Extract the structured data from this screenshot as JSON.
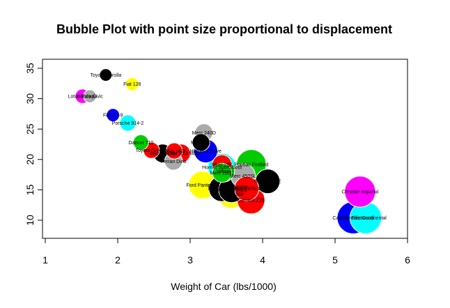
{
  "chart_data": {
    "type": "scatter",
    "title": "Bubble Plot with point size proportional to displacement",
    "xlabel": "Weight of Car (lbs/1000)",
    "ylabel": "",
    "xlim": [
      1,
      6
    ],
    "ylim": [
      7,
      37.5
    ],
    "x_ticks": [
      "1",
      "2",
      "3",
      "4",
      "5",
      "6"
    ],
    "y_ticks": [
      "10",
      "15",
      "20",
      "25",
      "30",
      "35"
    ],
    "grid": false,
    "legend": "none",
    "points": [
      {
        "label": "Chrysler Imperial",
        "x": 5.345,
        "y": 14.7,
        "disp": 440,
        "color": "#ff00ff"
      },
      {
        "label": "Lincoln Continental",
        "x": 5.424,
        "y": 10.4,
        "disp": 460,
        "color": "#00ffff"
      },
      {
        "label": "Cadillac Fleetwood",
        "x": 5.25,
        "y": 10.4,
        "disp": 472,
        "color": "#0000ff"
      },
      {
        "label": "Camaro Z28",
        "x": 3.84,
        "y": 13.3,
        "disp": 350,
        "color": "#ff0000"
      },
      {
        "label": "Hornet Sportabout",
        "x": 3.44,
        "y": 18.7,
        "disp": 360,
        "color": "#00ffff"
      },
      {
        "label": "Pontiac Firebird",
        "x": 3.845,
        "y": 19.2,
        "disp": 400,
        "color": "#00cc00"
      },
      {
        "label": "Ford Pantera L",
        "x": 3.17,
        "y": 15.8,
        "disp": 351,
        "color": "#ffff00"
      },
      {
        "label": "Duster 360",
        "x": 3.57,
        "y": 14.3,
        "disp": 360,
        "color": "#ffff00"
      },
      {
        "label": "Merc 450SE",
        "x": 4.07,
        "y": 16.4,
        "disp": 275.8,
        "color": "#000000"
      },
      {
        "label": "Merc 450SL",
        "x": 3.73,
        "y": 17.3,
        "disp": 275.8,
        "color": "#aaaaaa"
      },
      {
        "label": "Merc 450SLC",
        "x": 3.78,
        "y": 15.2,
        "disp": 275.8,
        "color": "#ff0000"
      },
      {
        "label": "AMC Javelin",
        "x": 3.435,
        "y": 15.2,
        "disp": 304,
        "color": "#000000"
      },
      {
        "label": "Dodge Challenger",
        "x": 3.52,
        "y": 15.5,
        "disp": 318,
        "color": "#000000"
      },
      {
        "label": "Maserati Bora",
        "x": 3.57,
        "y": 15.0,
        "disp": 301,
        "color": "#000000"
      },
      {
        "label": "Hornet 4 Drive",
        "x": 3.215,
        "y": 21.4,
        "disp": 258,
        "color": "#0000ff"
      },
      {
        "label": "Valiant",
        "x": 3.46,
        "y": 18.1,
        "disp": 225,
        "color": "#00cc00"
      },
      {
        "label": "Merc 230",
        "x": 3.15,
        "y": 22.8,
        "disp": 140.8,
        "color": "#000000"
      },
      {
        "label": "Merc 240D",
        "x": 3.19,
        "y": 24.4,
        "disp": 146.7,
        "color": "#aaaaaa"
      },
      {
        "label": "Merc 280",
        "x": 3.44,
        "y": 19.2,
        "disp": 167.6,
        "color": "#ff0000"
      },
      {
        "label": "Merc 280C",
        "x": 3.44,
        "y": 17.8,
        "disp": 167.6,
        "color": "#00cc00"
      },
      {
        "label": "Ferrari Dino",
        "x": 2.77,
        "y": 19.7,
        "disp": 145,
        "color": "#aaaaaa"
      },
      {
        "label": "Mazda RX4",
        "x": 2.62,
        "y": 21.0,
        "disp": 160,
        "color": "#000000"
      },
      {
        "label": "Mazda RX4 Wag",
        "x": 2.875,
        "y": 21.0,
        "disp": 160,
        "color": "#ff0000"
      },
      {
        "label": "Volvo 142E",
        "x": 2.78,
        "y": 21.4,
        "disp": 121,
        "color": "#ff0000"
      },
      {
        "label": "Toyota Corona",
        "x": 2.465,
        "y": 21.5,
        "disp": 120.1,
        "color": "#ff0000"
      },
      {
        "label": "Datsun 710",
        "x": 2.32,
        "y": 22.8,
        "disp": 108,
        "color": "#00cc00"
      },
      {
        "label": "Porsche 914-2",
        "x": 2.14,
        "y": 26.0,
        "disp": 120.3,
        "color": "#00ffff"
      },
      {
        "label": "Fiat X1-9",
        "x": 1.935,
        "y": 27.3,
        "disp": 79,
        "color": "#0000ff"
      },
      {
        "label": "Fiat 128",
        "x": 2.2,
        "y": 32.4,
        "disp": 78.7,
        "color": "#ffff00"
      },
      {
        "label": "Toyota Corolla",
        "x": 1.835,
        "y": 33.9,
        "disp": 71.1,
        "color": "#000000"
      },
      {
        "label": "Honda Civic",
        "x": 1.615,
        "y": 30.4,
        "disp": 75.7,
        "color": "#aaaaaa"
      },
      {
        "label": "Lotus Europa",
        "x": 1.513,
        "y": 30.4,
        "disp": 95.1,
        "color": "#ff00ff"
      }
    ]
  }
}
